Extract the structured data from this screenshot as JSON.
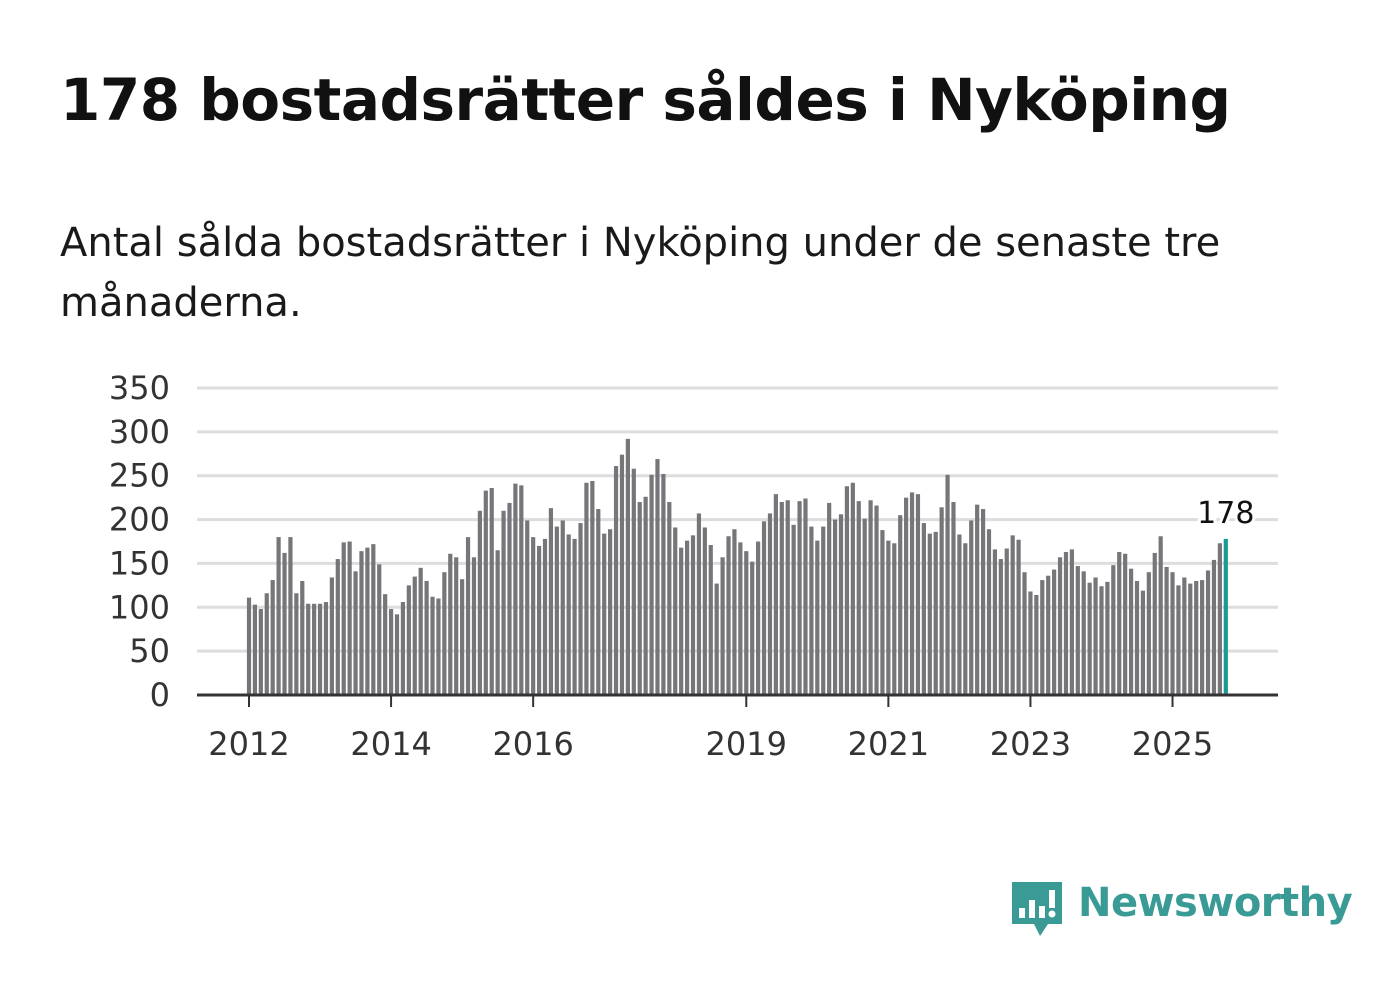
{
  "title": "178 bostadsrätter såldes i Nyköping",
  "subtitle": "Antal sålda bostadsrätter i Nyköping under de senaste tre månaderna.",
  "brand": {
    "name": "Newsworthy",
    "color": "#3a9a95"
  },
  "colors": {
    "bar": "#76767a",
    "highlight": "#1a9a95",
    "grid": "#dddddd",
    "axis": "#333333"
  },
  "chart_data": {
    "type": "bar",
    "title": "Antal sålda bostadsrätter i Nyköping under de senaste tre månaderna.",
    "xlabel": "",
    "ylabel": "",
    "ylim": [
      0,
      350
    ],
    "yticks": [
      0,
      50,
      100,
      150,
      200,
      250,
      300,
      350
    ],
    "start": "2012-01",
    "x_tick_labels": [
      {
        "label": "2012",
        "index": 0
      },
      {
        "label": "2014",
        "index": 24
      },
      {
        "label": "2016",
        "index": 48
      },
      {
        "label": "2019",
        "index": 84
      },
      {
        "label": "2021",
        "index": 108
      },
      {
        "label": "2023",
        "index": 132
      },
      {
        "label": "2025",
        "index": 156
      }
    ],
    "highlight": {
      "index": 165,
      "value": 178,
      "label": "178"
    },
    "values": [
      111,
      103,
      98,
      116,
      131,
      180,
      162,
      180,
      116,
      130,
      104,
      104,
      104,
      106,
      134,
      155,
      174,
      175,
      141,
      164,
      168,
      172,
      149,
      115,
      98,
      92,
      106,
      125,
      135,
      145,
      130,
      112,
      110,
      140,
      161,
      157,
      132,
      180,
      157,
      210,
      233,
      236,
      165,
      210,
      219,
      241,
      239,
      199,
      180,
      170,
      178,
      213,
      192,
      199,
      183,
      178,
      196,
      242,
      244,
      212,
      184,
      189,
      261,
      274,
      292,
      258,
      220,
      226,
      251,
      269,
      252,
      220,
      191,
      168,
      176,
      182,
      207,
      191,
      171,
      127,
      157,
      181,
      189,
      174,
      164,
      152,
      175,
      198,
      207,
      229,
      220,
      222,
      194,
      221,
      224,
      192,
      176,
      192,
      219,
      200,
      206,
      238,
      242,
      221,
      201,
      222,
      216,
      188,
      176,
      173,
      205,
      225,
      231,
      229,
      196,
      184,
      186,
      214,
      251,
      220,
      183,
      173,
      199,
      217,
      212,
      189,
      166,
      155,
      167,
      182,
      177,
      140,
      118,
      114,
      131,
      136,
      143,
      157,
      163,
      166,
      147,
      141,
      128,
      134,
      124,
      129,
      148,
      163,
      161,
      144,
      130,
      119,
      140,
      162,
      181,
      146,
      140,
      125,
      134,
      127,
      130,
      131,
      142,
      154,
      173,
      178
    ]
  }
}
